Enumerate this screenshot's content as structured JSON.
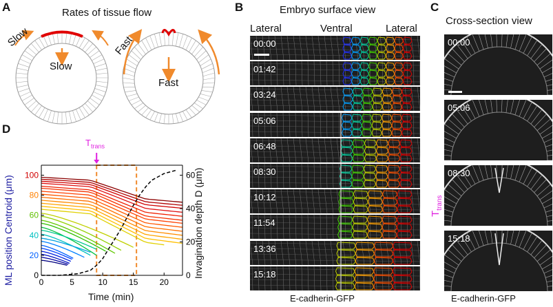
{
  "panels": {
    "a": {
      "letter": "A",
      "title": "Rates of tissue flow",
      "left_outer": "Slow",
      "left_inner": "Slow",
      "right_outer": "Fast",
      "right_inner": "Fast"
    },
    "b": {
      "letter": "B",
      "title": "Embryo surface view",
      "lateral_left": "Lateral",
      "ventral": "Ventral",
      "lateral_right": "Lateral",
      "timestamps": [
        "00:00",
        "01:42",
        "03:24",
        "05:06",
        "06:48",
        "08:30",
        "10:12",
        "11:54",
        "13:36",
        "15:18"
      ],
      "caption": "E-cadherin-GFP"
    },
    "c": {
      "letter": "C",
      "title": "Cross-section view",
      "timestamps": [
        "00:00",
        "05:06",
        "08:30",
        "15:18"
      ],
      "ttrans": "T",
      "ttrans_sub": "trans",
      "caption": "E-cadherin-GFP"
    },
    "d": {
      "letter": "D",
      "ttrans": "T",
      "ttrans_sub": "trans",
      "ylabel_left": "ML position Centroid (μm)",
      "ylabel_right": "Invagination depth D (μm)",
      "xlabel": "Time (min)"
    }
  },
  "chart_data": {
    "type": "line",
    "title": "",
    "xlabel": "Time (min)",
    "ylabel": "ML position Centroid (μm)",
    "ylabel_right": "Invagination depth D (μm)",
    "xlim": [
      0,
      23
    ],
    "ylim": [
      0,
      110
    ],
    "ylim_right": [
      0,
      66
    ],
    "xticks": [
      0,
      5,
      10,
      15,
      20
    ],
    "yticks": [
      0,
      20,
      40,
      60,
      80,
      100
    ],
    "yticks_right": [
      0,
      20,
      40,
      60
    ],
    "ytick_colors": [
      "#0000a0",
      "#0060ff",
      "#00c0c0",
      "#60c000",
      "#ff8000",
      "#d00000"
    ],
    "ttrans_time": 9,
    "highlight_window": [
      9,
      15.5
    ],
    "centroid_tracks": [
      {
        "start": 98,
        "end_value": 73,
        "end_time": 23,
        "color": "#8b0000"
      },
      {
        "start": 96,
        "end_value": 70,
        "end_time": 23,
        "color": "#b00000"
      },
      {
        "start": 94,
        "end_value": 67,
        "end_time": 23,
        "color": "#d00000"
      },
      {
        "start": 92,
        "end_value": 63,
        "end_time": 23,
        "color": "#e01010"
      },
      {
        "start": 89,
        "end_value": 59,
        "end_time": 23,
        "color": "#ef2000"
      },
      {
        "start": 87,
        "end_value": 55,
        "end_time": 23,
        "color": "#f53200"
      },
      {
        "start": 84,
        "end_value": 52,
        "end_time": 23,
        "color": "#ff4000"
      },
      {
        "start": 81,
        "end_value": 48,
        "end_time": 23,
        "color": "#ff5800"
      },
      {
        "start": 78,
        "end_value": 44,
        "end_time": 23,
        "color": "#ff7000"
      },
      {
        "start": 75,
        "end_value": 40,
        "end_time": 23,
        "color": "#ff8c00"
      },
      {
        "start": 72,
        "end_value": 36,
        "end_time": 23,
        "color": "#ffa500"
      },
      {
        "start": 69,
        "end_value": 32,
        "end_time": 23,
        "color": "#ffbf00"
      },
      {
        "start": 66,
        "end_value": 28,
        "end_time": 20,
        "color": "#e0d000"
      },
      {
        "start": 62,
        "end_value": 28,
        "end_time": 15,
        "color": "#c0d000"
      },
      {
        "start": 59,
        "end_value": 25,
        "end_time": 13,
        "color": "#90d000"
      },
      {
        "start": 55,
        "end_value": 22,
        "end_time": 12,
        "color": "#60c800"
      },
      {
        "start": 52,
        "end_value": 24,
        "end_time": 10.5,
        "color": "#30c000"
      },
      {
        "start": 48,
        "end_value": 20,
        "end_time": 9,
        "color": "#00c040"
      },
      {
        "start": 45,
        "end_value": 26,
        "end_time": 9,
        "color": "#00c890"
      },
      {
        "start": 41,
        "end_value": 20,
        "end_time": 8,
        "color": "#00c0c0"
      },
      {
        "start": 37,
        "end_value": 23,
        "end_time": 8,
        "color": "#00a0e0"
      },
      {
        "start": 34,
        "end_value": 18,
        "end_time": 7,
        "color": "#0080ff"
      },
      {
        "start": 30,
        "end_value": 17,
        "end_time": 5.2,
        "color": "#0060ff"
      },
      {
        "start": 27,
        "end_value": 16,
        "end_time": 5,
        "color": "#0040ff"
      },
      {
        "start": 24,
        "end_value": 14,
        "end_time": 4.8,
        "color": "#0020e0"
      },
      {
        "start": 21,
        "end_value": 12,
        "end_time": 4.6,
        "color": "#0010c0"
      },
      {
        "start": 18,
        "end_value": 11,
        "end_time": 4.4,
        "color": "#0000a0"
      },
      {
        "start": 15,
        "end_value": 10,
        "end_time": 4.2,
        "color": "#000080"
      }
    ],
    "depth_curve": {
      "color": "#000000",
      "style": "dashed",
      "points": [
        [
          0,
          0
        ],
        [
          3,
          0
        ],
        [
          6,
          1
        ],
        [
          8,
          3
        ],
        [
          9,
          6
        ],
        [
          10,
          10
        ],
        [
          11,
          16
        ],
        [
          12,
          22
        ],
        [
          13,
          28
        ],
        [
          14,
          35
        ],
        [
          15,
          42
        ],
        [
          16,
          48
        ],
        [
          17,
          53
        ],
        [
          18,
          57
        ],
        [
          19,
          59
        ],
        [
          20,
          61
        ],
        [
          21,
          62
        ],
        [
          22,
          63
        ]
      ]
    }
  }
}
